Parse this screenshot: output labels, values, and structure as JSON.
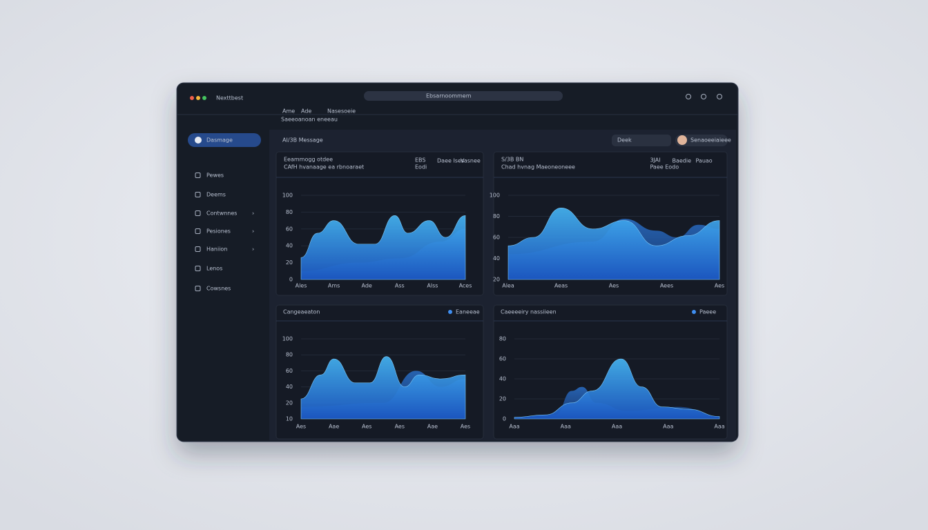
{
  "window": {
    "title": "Nexttbest",
    "url": "Ebsarnoommem"
  },
  "breadcrumb": [
    "Ame",
    "Ade",
    "Nasesoeie"
  ],
  "subcrumb": "Saeeoanoan eneeau",
  "sidebar": {
    "active": "Dasmage",
    "items": [
      "Pewes",
      "Deems",
      "Contwnnes",
      "Pesiones",
      "Haniion",
      "Lenos",
      "Cowsnes"
    ]
  },
  "header": {
    "title": "AI/3B Message",
    "button": "Deek",
    "user": "Senaoeeiaieee"
  },
  "panels": [
    {
      "title": "Eeammogg otdee",
      "subtitle": "CAfH hvanaage ea rbnoaraet",
      "stat": "EBS",
      "stat_label": "Eodi",
      "tabs": [
        "Daee Ises",
        "Vasnee"
      ],
      "yticks": [
        "100",
        "80",
        "60",
        "40",
        "20",
        "0"
      ],
      "xticks": [
        "Ales",
        "Ams",
        "Ade",
        "Ass",
        "Alss",
        "Aces"
      ]
    },
    {
      "title": "S/3B BN",
      "subtitle": "Chad hvnag Maeoneoneee",
      "stat": "3JAI",
      "stat_label": "Paee Eodo",
      "tabs": [
        "Baedie",
        "Pauao"
      ],
      "yticks": [
        "100",
        "80",
        "60",
        "40",
        "20"
      ],
      "xticks": [
        "Alea",
        "Aeas",
        "Aes",
        "Aees",
        "Aes"
      ]
    },
    {
      "title": "Cangeaeaton",
      "legend": "Eaneeae",
      "yticks": [
        "100",
        "80",
        "60",
        "40",
        "20",
        "10"
      ],
      "xticks": [
        "Aes",
        "Aae",
        "Aes",
        "Aes",
        "Aae",
        "Aes"
      ]
    },
    {
      "title": "Caeeeeiry nassiieen",
      "legend": "Paeee",
      "yticks": [
        "80",
        "60",
        "40",
        "20",
        "0"
      ],
      "xticks": [
        "Aaa",
        "Aaa",
        "Aaa",
        "Aaa",
        "Aaa"
      ]
    }
  ]
}
